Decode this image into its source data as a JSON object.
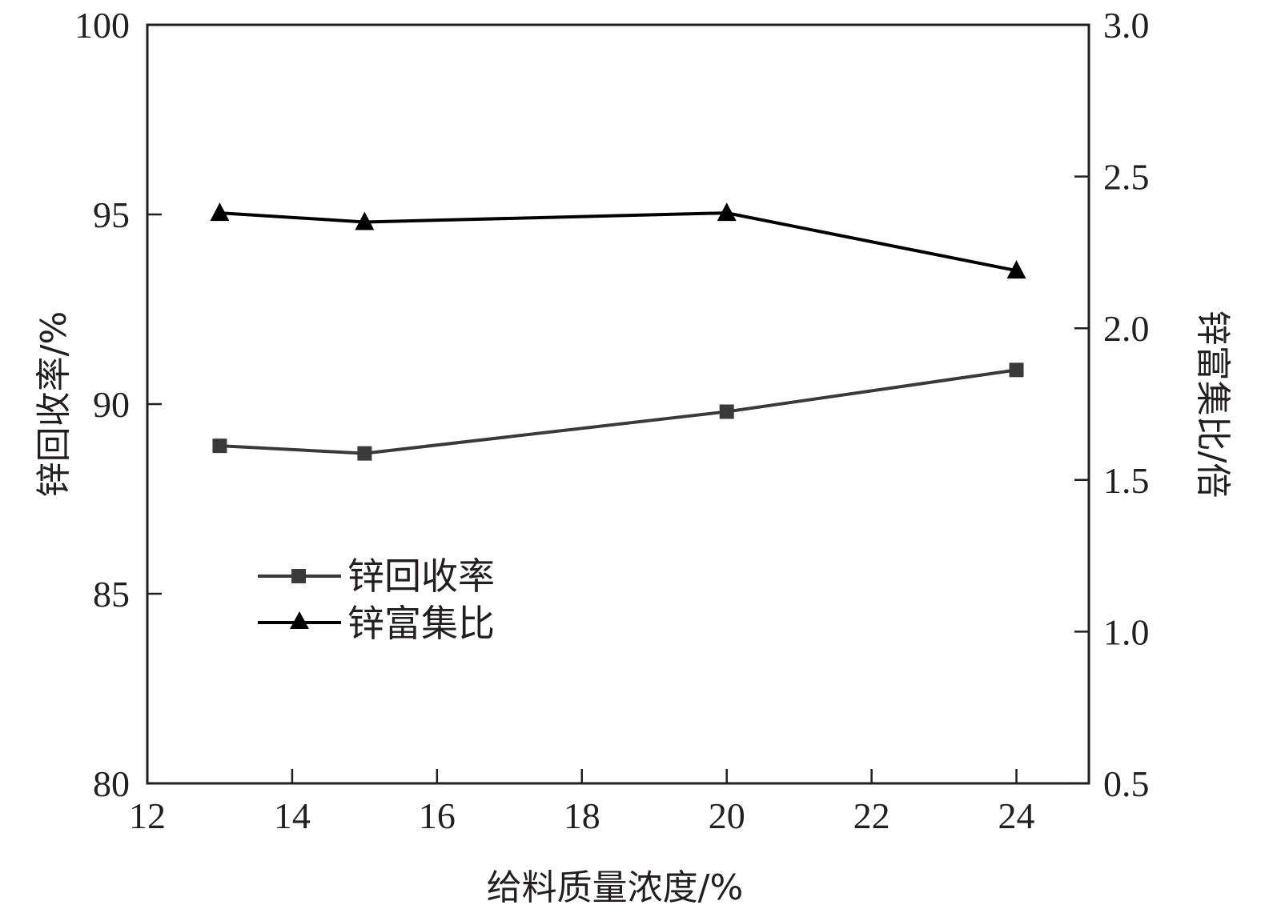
{
  "chart_data": {
    "type": "line",
    "x_axis": {
      "label": "给料质量浓度/%",
      "range": [
        12,
        25
      ],
      "ticks": [
        12,
        14,
        16,
        18,
        20,
        22,
        24
      ],
      "tick_labels": [
        "12",
        "14",
        "16",
        "18",
        "20",
        "22",
        "24"
      ]
    },
    "y_left_axis": {
      "label": "锌回收率/%",
      "range": [
        80,
        100
      ],
      "ticks": [
        80,
        85,
        90,
        95,
        100
      ],
      "tick_labels": [
        "80",
        "85",
        "90",
        "95",
        "100"
      ]
    },
    "y_right_axis": {
      "label": "锌富集比/倍",
      "range": [
        0.5,
        3.0
      ],
      "ticks": [
        0.5,
        1.0,
        1.5,
        2.0,
        2.5,
        3.0
      ],
      "tick_labels": [
        "0.5",
        "1.0",
        "1.5",
        "2.0",
        "2.5",
        "3.0"
      ]
    },
    "x": [
      13,
      15,
      20,
      24
    ],
    "series": [
      {
        "name": "锌回收率",
        "axis": "left",
        "marker": "square",
        "color": "#3a3a3a",
        "values": [
          88.9,
          88.7,
          89.8,
          90.9
        ]
      },
      {
        "name": "锌富集比",
        "axis": "right",
        "marker": "triangle",
        "color": "#000000",
        "values": [
          2.38,
          2.35,
          2.38,
          2.19
        ]
      }
    ],
    "legend_position": "lower-left",
    "grid": false
  }
}
